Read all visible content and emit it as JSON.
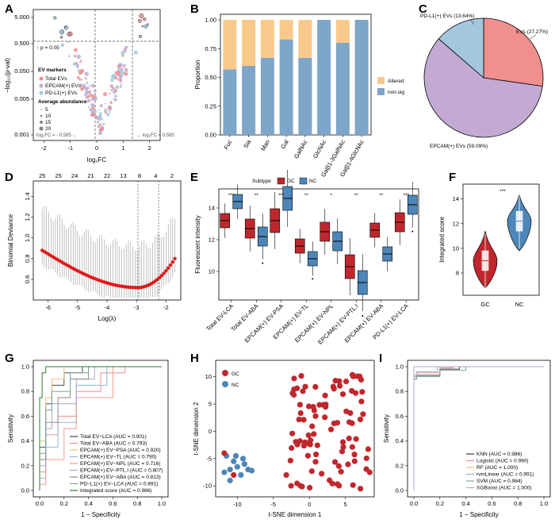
{
  "colors": {
    "gc": "#c0272d",
    "nc": "#4d86b8",
    "altered": "#f8c98a",
    "nonsig": "#7ea6c9",
    "pie_total": "#ef8f8e",
    "pie_epcam": "#c2aad3",
    "pie_pdl1": "#a3c7dc"
  },
  "panels": {
    "a": {
      "label": "A",
      "legend_title": "EV markers",
      "legend_items": [
        "Total EVs",
        "EPCAM(+) EVs",
        "PD-L1(+) EVs"
      ],
      "size_title": "Average abundance",
      "size_items": [
        "5",
        "10",
        "15",
        "20"
      ],
      "p_annot": "↑ p = 0.05",
      "left_annot": "log₂FC = - 0.585 ←",
      "right_annot": "→ log₂FC = 0.585"
    },
    "b": {
      "label": "B"
    },
    "c": {
      "label": "C"
    },
    "d": {
      "label": "D"
    },
    "e": {
      "label": "E"
    },
    "f": {
      "label": "F"
    },
    "g": {
      "label": "G"
    },
    "h": {
      "label": "H"
    },
    "i": {
      "label": "I"
    }
  },
  "chart_data": [
    {
      "panel": "A",
      "type": "scatter",
      "xlabel": "log₂FC",
      "ylabel": "−log₁₀(p-val)",
      "xticks": [
        "-2",
        "-1",
        "0",
        "1",
        "2"
      ],
      "yticks": [
        "5.000",
        "0.500",
        "0.050",
        "0.005",
        "0.001"
      ],
      "series": [
        {
          "name": "Total EVs",
          "color": "#ef8f8e"
        },
        {
          "name": "EPCAM(+) EVs",
          "color": "#c2aad3"
        },
        {
          "name": "PD-L1(+) EVs",
          "color": "#a3c7dc"
        }
      ]
    },
    {
      "panel": "B",
      "type": "bar",
      "ylabel": "Proportion",
      "categories": [
        "Fuc",
        "Sia",
        "Man",
        "Gal",
        "GalNAc",
        "GlcNAc",
        "Galβ1-3GalNAc",
        "Galβ1-4GlcNAc"
      ],
      "yticks": [
        "0.00",
        "0.25",
        "0.50",
        "0.75",
        "1.00"
      ],
      "series": [
        {
          "name": "non.sig",
          "values": [
            0.57,
            0.6,
            0.67,
            0.83,
            0.67,
            1.0,
            0.8,
            1.0
          ]
        },
        {
          "name": "Altered",
          "values": [
            0.43,
            0.4,
            0.33,
            0.17,
            0.33,
            0.0,
            0.2,
            0.0
          ]
        }
      ],
      "legend": [
        "Altered",
        "non.sig"
      ]
    },
    {
      "panel": "C",
      "type": "pie",
      "labels": [
        "EVs (27.27%)",
        "EPCAM(+) EVs (59.09%)",
        "PD-L1(+) EVs (13.64%)"
      ],
      "values": [
        27.27,
        59.09,
        13.64
      ]
    },
    {
      "panel": "D",
      "type": "line",
      "xlabel": "Log(λ)",
      "ylabel": "Binomial Deviance",
      "xticks": [
        "-6",
        "-5",
        "-4",
        "-3",
        "-2"
      ],
      "yticks": [
        "0.6",
        "0.8",
        "1.0",
        "1.2",
        "1.4"
      ],
      "top_ticks": [
        "25",
        "25",
        "24",
        "21",
        "22",
        "13",
        "8",
        "4",
        "2"
      ]
    },
    {
      "panel": "E",
      "type": "box",
      "ylabel": "Fluorescent intensity",
      "legend_title": "Subtype",
      "legend": [
        "GC",
        "NC"
      ],
      "yticks": [
        "10",
        "12",
        "14"
      ],
      "categories": [
        "Total EV-LCA",
        "Total EV-ABA",
        "EPCAM(+) EV-PSA",
        "EPCAM(+) EV-TL",
        "EPCAM(+) EV-NPL",
        "EPCAM(+) EV-PTL.I",
        "EPCAM(+) EV-ABA",
        "PD-L1(+) EV-LCA"
      ],
      "sig": [
        "***",
        "**",
        "***",
        "**",
        "*",
        "**",
        "**",
        "***"
      ],
      "gc_median": [
        13.2,
        12.7,
        13.2,
        11.6,
        12.5,
        10.3,
        12.6,
        13.1
      ],
      "nc_median": [
        14.4,
        12.2,
        14.6,
        10.8,
        11.9,
        9.3,
        11.1,
        14.2
      ]
    },
    {
      "panel": "F",
      "type": "violin",
      "ylabel": "Integrated score",
      "categories": [
        "GC",
        "NC"
      ],
      "yticks": [
        "8",
        "10",
        "12",
        "14"
      ],
      "sig": "***",
      "medians": [
        9.0,
        12.2
      ]
    },
    {
      "panel": "G",
      "type": "line",
      "xlabel": "1 − Specificity",
      "ylabel": "Sensitivity",
      "xticks": [
        "0.0",
        "0.2",
        "0.4",
        "0.6",
        "0.8",
        "1.0"
      ],
      "yticks": [
        "0.0",
        "0.2",
        "0.4",
        "0.6",
        "0.8",
        "1.0"
      ],
      "series": [
        {
          "name": "Total EV−LCA (AUC = 0.901)",
          "color": "#4a4a4a"
        },
        {
          "name": "Total EV−ABA (AUC = 0.793)",
          "color": "#ef8f8e"
        },
        {
          "name": "EPCAM(+) EV−PSA (AUC = 0.920)",
          "color": "#f3c27a"
        },
        {
          "name": "EPCAM(+) EV−TL (AUC = 0.790)",
          "color": "#8fb8d6"
        },
        {
          "name": "EPCAM(+) EV−NPL (AUC = 0.716)",
          "color": "#f29a8e"
        },
        {
          "name": "EPCAM(+) EV−PTL.I (AUC = 0.807)",
          "color": "#b1a0cf"
        },
        {
          "name": "EPCAM(+) EV−ABA (AUC = 0.813)",
          "color": "#8a8a8a"
        },
        {
          "name": "PD−L1(+) EV−LCA (AUC = 0.891)",
          "color": "#7aa6a0"
        },
        {
          "name": "Integrated score (AUC = 0.986)",
          "color": "#2e7d32"
        }
      ]
    },
    {
      "panel": "H",
      "type": "scatter",
      "xlabel": "t-SNE dimension 1",
      "ylabel": "t-SNE dimension 2",
      "xticks": [
        "-10",
        "-5",
        "0",
        "5"
      ],
      "yticks": [
        "-10",
        "-5",
        "0",
        "5",
        "10"
      ],
      "legend": [
        "GC",
        "NC"
      ]
    },
    {
      "panel": "I",
      "type": "line",
      "xlabel": "1 − Specificity",
      "ylabel": "Sensitivity",
      "xticks": [
        "0.0",
        "0.2",
        "0.4",
        "0.6",
        "0.8",
        "1.0"
      ],
      "yticks": [
        "0.0",
        "0.2",
        "0.4",
        "0.6",
        "0.8",
        "1.0"
      ],
      "series": [
        {
          "name": "KNN (AUC = 0.986)",
          "color": "#3a3a3a"
        },
        {
          "name": "Logistic (AUC = 0.990)",
          "color": "#ef8f8e"
        },
        {
          "name": "RF (AUC = 1.000)",
          "color": "#f3c27a"
        },
        {
          "name": "rvmLinear (AUC = 0.991)",
          "color": "#8fb8d6"
        },
        {
          "name": "SVM (AUC = 0.984)",
          "color": "#7aa6a0"
        },
        {
          "name": "XGBoost (AUC = 1.000)",
          "color": "#b1a0cf"
        }
      ]
    }
  ]
}
